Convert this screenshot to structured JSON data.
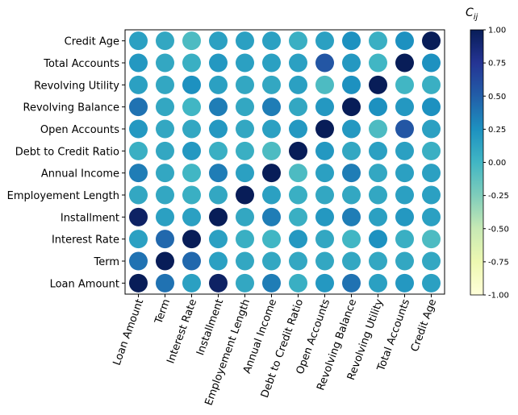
{
  "chart_data": {
    "type": "heatmap",
    "title": "",
    "colorbar_label": "C_ij",
    "colorbar_label_main": "C",
    "colorbar_label_sub": "ij",
    "colorbar_ticks": [
      "1.00",
      "0.75",
      "0.50",
      "0.25",
      "0.00",
      "-0.25",
      "-0.50",
      "-0.75",
      "-1.00"
    ],
    "colorbar_range": [
      -1,
      1
    ],
    "colormap": "YlGnBu",
    "colormap_stops": [
      "#ffffd9",
      "#edf8b1",
      "#c7e9b4",
      "#7fcdbb",
      "#41b6c4",
      "#1d91c0",
      "#225ea8",
      "#253494",
      "#081d58"
    ],
    "x_labels": [
      "Loan Amount",
      "Term",
      "Interest Rate",
      "Installment",
      "Employement Length",
      "Annual Income",
      "Debt to Credit Ratio",
      "Open Accounts",
      "Revolving Balance",
      "Revolving Utility",
      "Total Accounts",
      "Credit Age"
    ],
    "y_labels_bottom_to_top": [
      "Loan Amount",
      "Term",
      "Interest Rate",
      "Installment",
      "Employement Length",
      "Annual Income",
      "Debt to Credit Ratio",
      "Open Accounts",
      "Revolving Balance",
      "Revolving Utility",
      "Total Accounts",
      "Credit Age"
    ],
    "values": [
      [
        1.0,
        0.4,
        0.15,
        0.95,
        0.1,
        0.35,
        0.05,
        0.2,
        0.4,
        0.15,
        0.2,
        0.15
      ],
      [
        0.4,
        1.0,
        0.45,
        0.15,
        0.1,
        0.1,
        0.1,
        0.1,
        0.1,
        0.1,
        0.1,
        0.1
      ],
      [
        0.15,
        0.45,
        1.0,
        0.15,
        0.05,
        0.0,
        0.2,
        0.1,
        0.0,
        0.25,
        0.05,
        -0.05
      ],
      [
        0.95,
        0.15,
        0.15,
        1.0,
        0.1,
        0.35,
        0.05,
        0.2,
        0.35,
        0.15,
        0.2,
        0.15
      ],
      [
        0.1,
        0.1,
        0.05,
        0.1,
        1.0,
        0.15,
        0.05,
        0.1,
        0.1,
        0.1,
        0.15,
        0.15
      ],
      [
        0.35,
        0.1,
        0.0,
        0.35,
        0.15,
        1.0,
        -0.05,
        0.15,
        0.35,
        0.1,
        0.15,
        0.15
      ],
      [
        0.05,
        0.1,
        0.2,
        0.05,
        0.05,
        -0.05,
        1.0,
        0.2,
        0.1,
        0.15,
        0.15,
        0.05
      ],
      [
        0.2,
        0.1,
        0.1,
        0.2,
        0.1,
        0.15,
        0.2,
        1.0,
        0.2,
        -0.05,
        0.55,
        0.15
      ],
      [
        0.4,
        0.1,
        0.0,
        0.35,
        0.1,
        0.35,
        0.1,
        0.2,
        1.0,
        0.25,
        0.2,
        0.25
      ],
      [
        0.15,
        0.1,
        0.25,
        0.15,
        0.1,
        0.1,
        0.15,
        -0.05,
        0.25,
        1.0,
        0.0,
        0.05
      ],
      [
        0.2,
        0.1,
        0.05,
        0.2,
        0.15,
        0.15,
        0.15,
        0.55,
        0.2,
        0.0,
        1.0,
        0.25
      ],
      [
        0.15,
        0.1,
        -0.05,
        0.15,
        0.15,
        0.15,
        0.05,
        0.15,
        0.25,
        0.05,
        0.25,
        1.0
      ]
    ],
    "grid": false,
    "legend": "colorbar-right"
  }
}
